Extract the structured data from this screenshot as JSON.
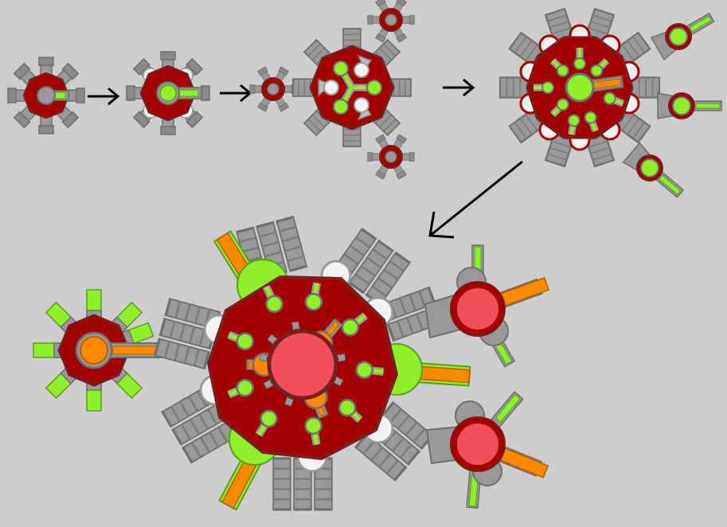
{
  "colors": {
    "background": "#cdcdcd",
    "grid": "#c4c4c4",
    "body_red": "#a30000",
    "body_outline": "#7a1f1f",
    "barrel_gray": "#999999",
    "barrel_outline": "#6f6f6f",
    "white": "#f2f2f2",
    "green": "#8ef02a",
    "green_outline": "#5c9e1c",
    "orange": "#ff8a00",
    "orange_outline": "#b85f00",
    "core_red": "#f0505a",
    "arrow": "#000000"
  },
  "icons": {
    "stage_arrows": "right-arrow",
    "final_arrow": "down-left-arrow"
  },
  "stages": [
    {
      "name": "stage-1-tank"
    },
    {
      "name": "stage-2-tank"
    },
    {
      "name": "stage-3-tank"
    },
    {
      "name": "stage-4-tank"
    },
    {
      "name": "final-boss-tank"
    }
  ]
}
